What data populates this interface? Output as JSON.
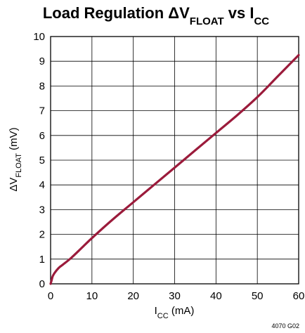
{
  "chart_data": {
    "type": "line",
    "title": {
      "main": "Load Regulation ΔV",
      "sub1": "FLOAT",
      "mid": " vs I",
      "sub2": "CC"
    },
    "xlabel": {
      "main": "I",
      "sub": "CC",
      "rest": " (mA)"
    },
    "ylabel": {
      "main": "ΔV",
      "sub": "FLOAT",
      "rest": " (mV)"
    },
    "xlim": [
      0,
      60
    ],
    "ylim": [
      0,
      10
    ],
    "x_ticks": [
      0,
      10,
      20,
      30,
      40,
      50,
      60
    ],
    "y_ticks": [
      0,
      1,
      2,
      3,
      4,
      5,
      6,
      7,
      8,
      9,
      10
    ],
    "grid": true,
    "series": [
      {
        "color": "#9b1b3b",
        "x": [
          0,
          0.25,
          0.5,
          1,
          2,
          3,
          5,
          7.5,
          10,
          15,
          20,
          25,
          30,
          35,
          40,
          45,
          50,
          55,
          60
        ],
        "y": [
          0,
          0.15,
          0.3,
          0.45,
          0.65,
          0.78,
          1.05,
          1.45,
          1.85,
          2.6,
          3.3,
          4.0,
          4.7,
          5.4,
          6.1,
          6.8,
          7.55,
          8.4,
          9.25
        ]
      }
    ],
    "footnote": "4070 G02"
  }
}
